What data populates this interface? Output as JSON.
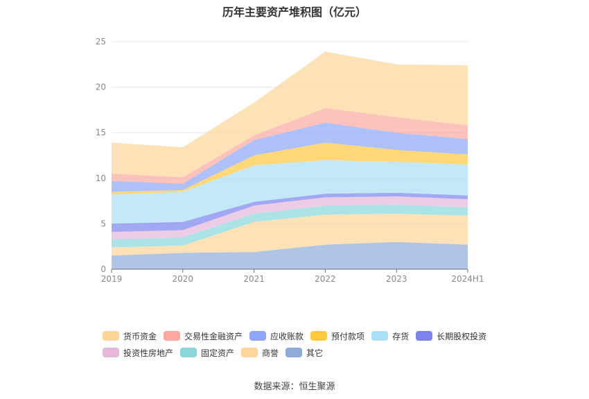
{
  "chart_data": {
    "type": "area",
    "stacked": true,
    "title": "历年主要资产堆积图（亿元）",
    "categories": [
      "2019",
      "2020",
      "2021",
      "2022",
      "2023",
      "2024H1"
    ],
    "ylim": [
      0,
      25
    ],
    "yticks": [
      0,
      5,
      10,
      15,
      20,
      25
    ],
    "grid": true,
    "legend_position": "bottom",
    "series": [
      {
        "name": "其它",
        "color": "#8EACDA",
        "values": [
          1.5,
          1.8,
          1.9,
          2.7,
          3.0,
          2.7
        ]
      },
      {
        "name": "商誉",
        "color": "#FCD69A",
        "values": [
          0.9,
          0.8,
          3.3,
          3.3,
          3.1,
          3.2
        ]
      },
      {
        "name": "固定资产",
        "color": "#88D8DB",
        "values": [
          0.9,
          0.9,
          0.9,
          1.0,
          1.0,
          0.9
        ]
      },
      {
        "name": "投资性房地产",
        "color": "#E6B8DC",
        "values": [
          0.8,
          0.8,
          0.9,
          0.9,
          0.9,
          0.9
        ]
      },
      {
        "name": "长期股权投资",
        "color": "#7B83EB",
        "values": [
          0.9,
          0.9,
          0.4,
          0.4,
          0.4,
          0.4
        ]
      },
      {
        "name": "存货",
        "color": "#A9DFF7",
        "values": [
          3.2,
          3.3,
          4.0,
          3.7,
          3.4,
          3.4
        ]
      },
      {
        "name": "预付款项",
        "color": "#FFC940",
        "values": [
          0.3,
          0.2,
          1.1,
          1.9,
          1.3,
          1.1
        ]
      },
      {
        "name": "应收账款",
        "color": "#8DA6F7",
        "values": [
          1.2,
          0.7,
          1.7,
          2.2,
          1.9,
          1.7
        ]
      },
      {
        "name": "交易性金融资产",
        "color": "#FBA89E",
        "values": [
          0.8,
          0.7,
          0.5,
          1.6,
          1.7,
          1.5
        ]
      },
      {
        "name": "货币资金",
        "color": "#FDD699",
        "values": [
          3.4,
          3.3,
          3.6,
          6.2,
          5.8,
          6.6
        ]
      }
    ],
    "legend_order": [
      "货币资金",
      "交易性金融资产",
      "应收账款",
      "预付款项",
      "存货",
      "长期股权投资",
      "投资性房地产",
      "固定资产",
      "商誉",
      "其它"
    ]
  },
  "source": "数据来源：恒生聚源"
}
